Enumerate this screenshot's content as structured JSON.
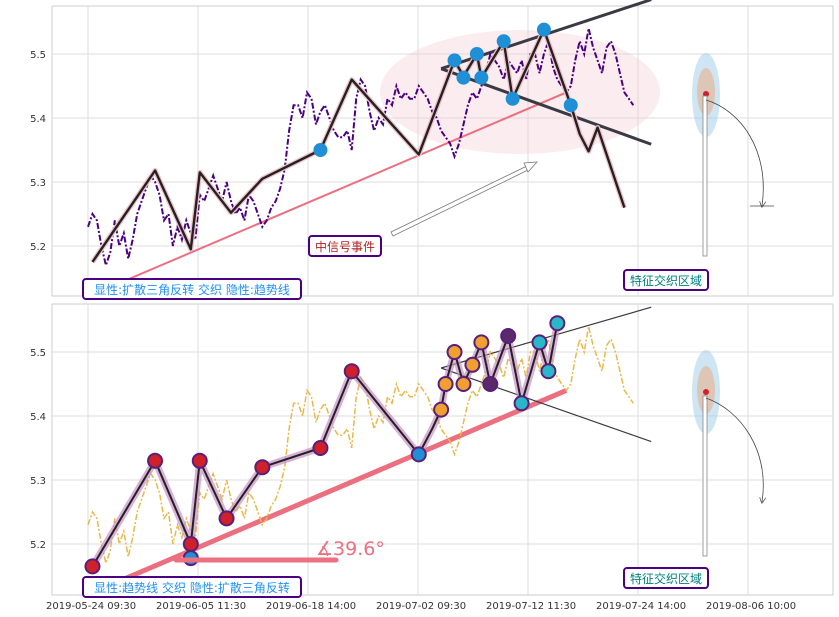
{
  "chart_data": [
    {
      "type": "line",
      "panel": "top",
      "ylim": [
        5.12,
        5.58
      ],
      "yticks": [
        "5.2",
        "5.3",
        "5.4",
        "5.5"
      ],
      "series": [
        {
          "role": "price",
          "color": "#4b0082",
          "values": [
            5.23,
            5.25,
            5.24,
            5.2,
            5.17,
            5.19,
            5.24,
            5.2,
            5.22,
            5.18,
            5.21,
            5.25,
            5.27,
            5.29,
            5.31,
            5.3,
            5.28,
            5.24,
            5.25,
            5.2,
            5.23,
            5.21,
            5.24,
            5.22,
            5.21,
            5.28,
            5.27,
            5.29,
            5.31,
            5.29,
            5.27,
            5.3,
            5.27,
            5.25,
            5.26,
            5.24,
            5.28,
            5.27,
            5.25,
            5.23,
            5.24,
            5.26,
            5.27,
            5.29,
            5.32,
            5.38,
            5.42,
            5.42,
            5.4,
            5.44,
            5.43,
            5.39,
            5.41,
            5.42,
            5.4,
            5.38,
            5.37,
            5.37,
            5.38,
            5.35,
            5.43,
            5.46,
            5.45,
            5.41,
            5.38,
            5.4,
            5.39,
            5.43,
            5.42,
            5.45,
            5.43,
            5.44,
            5.43,
            5.43,
            5.45,
            5.44,
            5.43,
            5.41,
            5.4,
            5.38,
            5.37,
            5.36,
            5.34,
            5.36,
            5.39,
            5.42,
            5.44,
            5.43,
            5.45,
            5.47,
            5.5,
            5.49,
            5.48,
            5.46,
            5.49,
            5.48,
            5.47,
            5.49,
            5.46,
            5.5,
            5.5,
            5.47,
            5.5,
            5.52,
            5.48,
            5.46,
            5.45,
            5.44,
            5.45,
            5.49,
            5.52,
            5.5,
            5.54,
            5.51,
            5.49,
            5.47,
            5.51,
            5.52,
            5.5,
            5.47,
            5.44,
            5.43,
            5.42
          ]
        }
      ],
      "zigzag": [
        [
          1,
          5.175
        ],
        [
          15,
          5.318
        ],
        [
          23,
          5.195
        ],
        [
          25,
          5.315
        ],
        [
          32,
          5.252
        ],
        [
          39,
          5.305
        ],
        [
          52,
          5.35
        ],
        [
          59,
          5.46
        ],
        [
          74,
          5.343
        ],
        [
          82,
          5.49
        ],
        [
          84,
          5.465
        ],
        [
          87,
          5.5
        ],
        [
          88,
          5.463
        ],
        [
          93,
          5.52
        ],
        [
          95,
          5.43
        ],
        [
          102,
          5.538
        ],
        [
          108,
          5.42
        ],
        [
          110,
          5.375
        ],
        [
          112,
          5.348
        ],
        [
          114,
          5.385
        ],
        [
          120,
          5.26
        ]
      ],
      "markers": [
        [
          52,
          5.35
        ],
        [
          82,
          5.49
        ],
        [
          84,
          5.463
        ],
        [
          87,
          5.5
        ],
        [
          88,
          5.463
        ],
        [
          93,
          5.52
        ],
        [
          95,
          5.43
        ],
        [
          102,
          5.538
        ],
        [
          108,
          5.42
        ]
      ],
      "trendline": [
        [
          8,
          5.145
        ],
        [
          107,
          5.44
        ]
      ],
      "channel_upper": [
        [
          79,
          5.477
        ],
        [
          126,
          5.585
        ]
      ],
      "channel_lower": [
        [
          79,
          5.477
        ],
        [
          126,
          5.359
        ]
      ],
      "annotations": [
        {
          "text": "中信号事件",
          "color": "#b22222"
        },
        {
          "text": "特征交织区域",
          "color": "#008080"
        },
        {
          "text": "显性:扩散三角反转 交织 隐性:趋势线",
          "color": "#1e90ff"
        }
      ]
    },
    {
      "type": "line",
      "panel": "bottom",
      "ylim": [
        5.12,
        5.58
      ],
      "yticks": [
        "5.2",
        "5.3",
        "5.4",
        "5.5"
      ],
      "series": [
        {
          "role": "price",
          "color": "#e8b84a",
          "values": [
            5.23,
            5.25,
            5.24,
            5.2,
            5.17,
            5.19,
            5.24,
            5.2,
            5.22,
            5.18,
            5.21,
            5.25,
            5.27,
            5.29,
            5.31,
            5.3,
            5.28,
            5.24,
            5.25,
            5.2,
            5.23,
            5.21,
            5.24,
            5.22,
            5.21,
            5.28,
            5.27,
            5.29,
            5.31,
            5.29,
            5.27,
            5.3,
            5.27,
            5.25,
            5.26,
            5.24,
            5.28,
            5.27,
            5.25,
            5.23,
            5.24,
            5.26,
            5.27,
            5.29,
            5.32,
            5.38,
            5.42,
            5.42,
            5.4,
            5.44,
            5.43,
            5.39,
            5.41,
            5.42,
            5.4,
            5.38,
            5.37,
            5.37,
            5.38,
            5.35,
            5.43,
            5.46,
            5.45,
            5.41,
            5.38,
            5.4,
            5.39,
            5.43,
            5.42,
            5.45,
            5.43,
            5.44,
            5.43,
            5.43,
            5.45,
            5.44,
            5.43,
            5.41,
            5.4,
            5.38,
            5.37,
            5.36,
            5.34,
            5.36,
            5.39,
            5.42,
            5.44,
            5.43,
            5.45,
            5.47,
            5.5,
            5.49,
            5.48,
            5.46,
            5.49,
            5.48,
            5.47,
            5.49,
            5.46,
            5.5,
            5.5,
            5.47,
            5.5,
            5.52,
            5.48,
            5.46,
            5.45,
            5.44,
            5.45,
            5.49,
            5.52,
            5.5,
            5.54,
            5.51,
            5.49,
            5.47,
            5.51,
            5.52,
            5.5,
            5.47,
            5.44,
            5.43,
            5.42
          ]
        }
      ],
      "zigzag": [
        [
          1,
          5.165
        ],
        [
          15,
          5.33
        ],
        [
          23,
          5.2
        ],
        [
          25,
          5.33
        ],
        [
          31,
          5.24
        ],
        [
          39,
          5.32
        ],
        [
          52,
          5.35
        ],
        [
          59,
          5.47
        ],
        [
          74,
          5.34
        ],
        [
          77,
          5.38
        ],
        [
          79,
          5.41
        ],
        [
          80,
          5.45
        ],
        [
          82,
          5.5
        ],
        [
          84,
          5.45
        ],
        [
          86,
          5.48
        ],
        [
          88,
          5.515
        ],
        [
          90,
          5.45
        ],
        [
          94,
          5.525
        ],
        [
          97,
          5.42
        ],
        [
          101,
          5.515
        ],
        [
          103,
          5.47
        ],
        [
          105,
          5.545
        ]
      ],
      "markers": [
        [
          1,
          5.165
        ],
        [
          15,
          5.33
        ],
        [
          23,
          5.2
        ],
        [
          23,
          5.178
        ],
        [
          25,
          5.33
        ],
        [
          31,
          5.24
        ],
        [
          39,
          5.32
        ],
        [
          52,
          5.35
        ],
        [
          59,
          5.47
        ],
        [
          74,
          5.34
        ],
        [
          79,
          5.41
        ],
        [
          80,
          5.45
        ],
        [
          82,
          5.5
        ],
        [
          84,
          5.45
        ],
        [
          86,
          5.48
        ],
        [
          88,
          5.515
        ],
        [
          90,
          5.45
        ],
        [
          94,
          5.525
        ],
        [
          97,
          5.42
        ],
        [
          101,
          5.515
        ],
        [
          103,
          5.47
        ],
        [
          105,
          5.545
        ]
      ],
      "trendline": [
        [
          8,
          5.145
        ],
        [
          107,
          5.44
        ]
      ],
      "channel_upper": [
        [
          79,
          5.475
        ],
        [
          126,
          5.57
        ]
      ],
      "channel_lower": [
        [
          79,
          5.475
        ],
        [
          126,
          5.36
        ]
      ],
      "angle_label": "∡39.6°",
      "annotations": [
        {
          "text": "特征交织区域",
          "color": "#008080"
        },
        {
          "text": "显性:趋势线 交织 隐性:扩散三角反转",
          "color": "#1e90ff"
        }
      ]
    }
  ],
  "x_tick_labels": [
    "2019-05-24 09:30",
    "2019-06-05 11:30",
    "2019-06-18 14:00",
    "2019-07-02 09:30",
    "2019-07-12 11:30",
    "2019-07-24 14:00",
    "2019-08-06 10:00"
  ]
}
